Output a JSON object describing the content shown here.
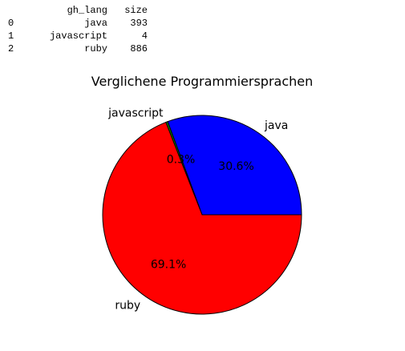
{
  "table": {
    "columns": [
      "",
      "gh_lang",
      "size"
    ],
    "rows": [
      [
        "0",
        "java",
        "393"
      ],
      [
        "1",
        "javascript",
        "4"
      ],
      [
        "2",
        "ruby",
        "886"
      ]
    ]
  },
  "chart_data": {
    "type": "pie",
    "title": "Verglichene Programmiersprachen",
    "labels": [
      "java",
      "javascript",
      "ruby"
    ],
    "values": [
      393,
      4,
      886
    ],
    "autopct": [
      "30.6%",
      "0.3%",
      "69.1%"
    ],
    "colors": [
      "#0000ff",
      "#008000",
      "#ff0000"
    ],
    "start_angle_deg": 0,
    "direction": "counterclockwise"
  }
}
